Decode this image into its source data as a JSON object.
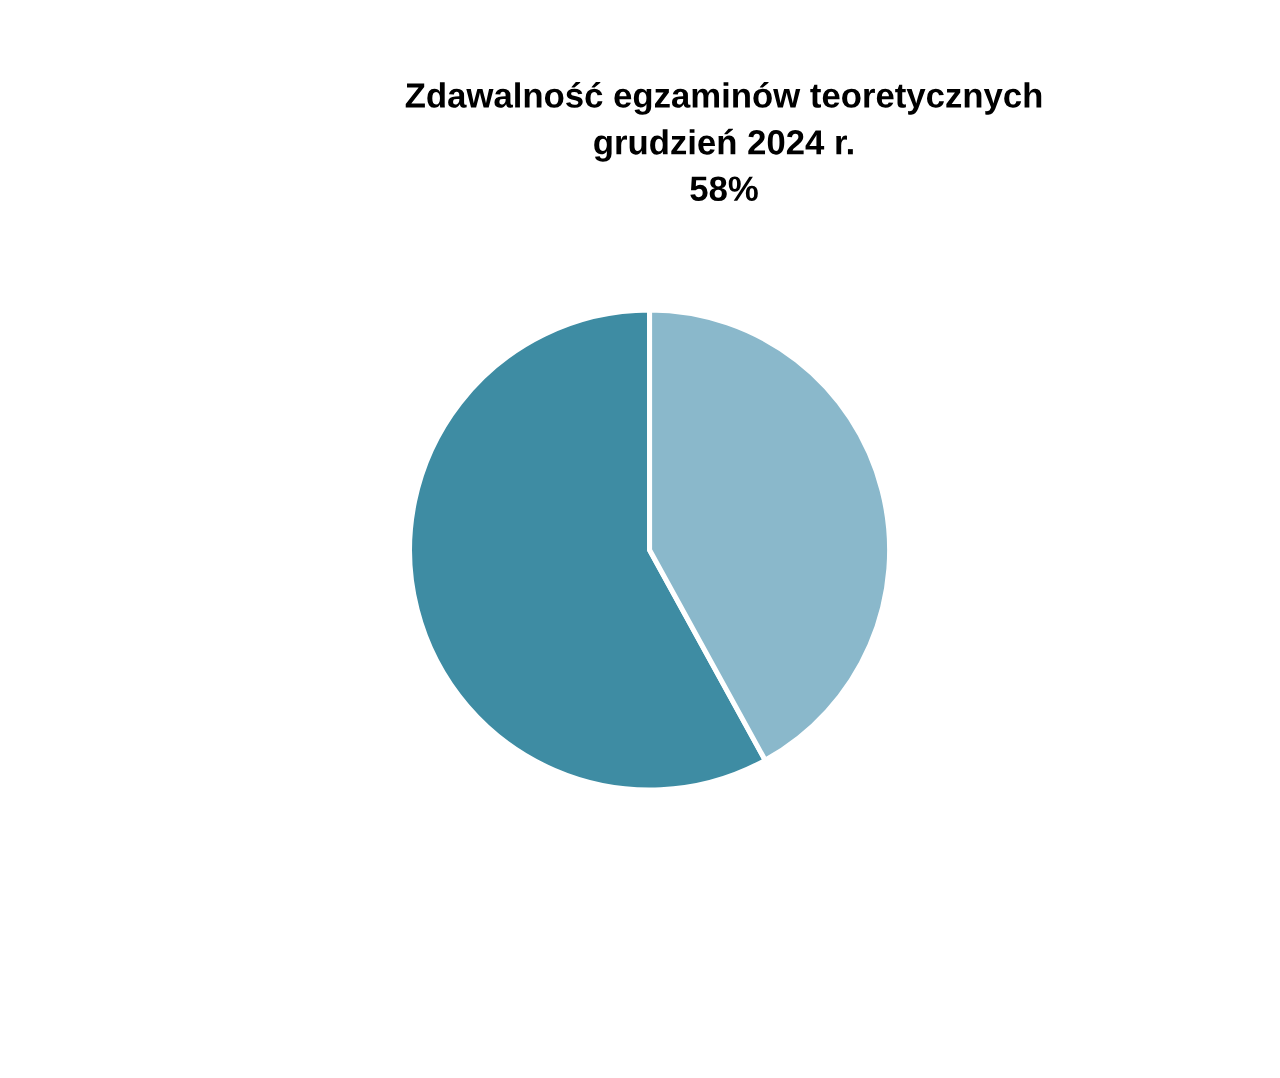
{
  "chart_data": {
    "type": "pie",
    "title": "Zdawalność egzaminów teoretycznych\ngrudzień 2024 r.\n58%",
    "categories": [
      null,
      null
    ],
    "values": [
      58,
      42
    ],
    "colors": [
      "#3e8ca3",
      "#8ab8cb"
    ]
  }
}
